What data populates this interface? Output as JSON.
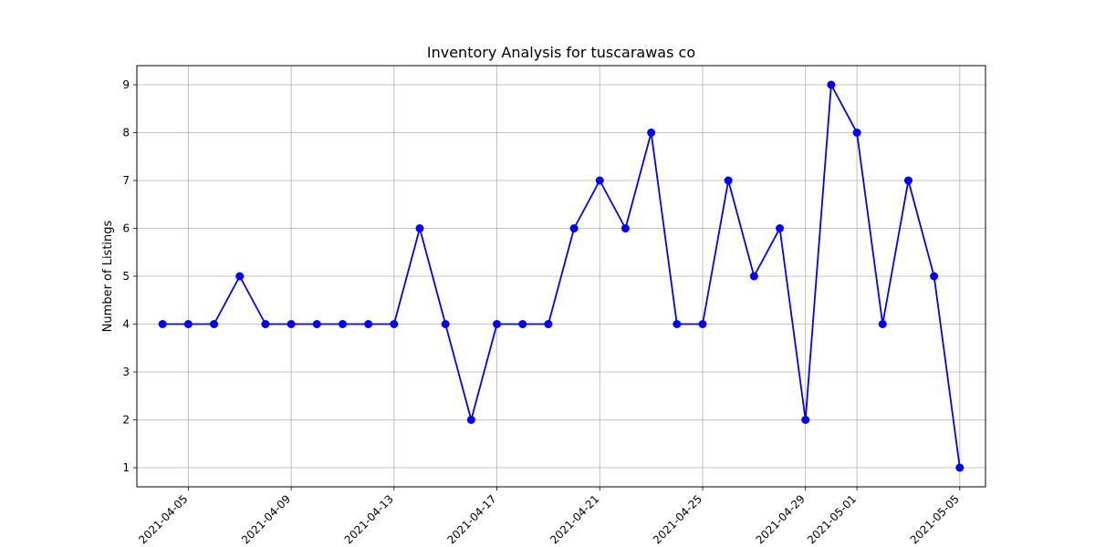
{
  "chart_data": {
    "type": "line",
    "title": "Inventory Analysis for tuscarawas co",
    "xlabel": "",
    "ylabel": "Number of Listings",
    "x": [
      "2021-04-04",
      "2021-04-05",
      "2021-04-06",
      "2021-04-07",
      "2021-04-08",
      "2021-04-09",
      "2021-04-10",
      "2021-04-11",
      "2021-04-12",
      "2021-04-13",
      "2021-04-14",
      "2021-04-15",
      "2021-04-16",
      "2021-04-17",
      "2021-04-18",
      "2021-04-19",
      "2021-04-20",
      "2021-04-21",
      "2021-04-22",
      "2021-04-23",
      "2021-04-24",
      "2021-04-25",
      "2021-04-26",
      "2021-04-27",
      "2021-04-28",
      "2021-04-29",
      "2021-04-30",
      "2021-05-01",
      "2021-05-02",
      "2021-05-03",
      "2021-05-04",
      "2021-05-05"
    ],
    "series": [
      {
        "values": [
          4,
          4,
          4,
          5,
          4,
          4,
          4,
          4,
          4,
          4,
          6,
          4,
          2,
          4,
          4,
          4,
          6,
          7,
          6,
          8,
          4,
          4,
          7,
          5,
          6,
          2,
          9,
          8,
          4,
          7,
          5,
          1
        ],
        "color": "#0000ff",
        "marker": "circle"
      }
    ],
    "xticks": [
      "2021-04-05",
      "2021-04-09",
      "2021-04-13",
      "2021-04-17",
      "2021-04-21",
      "2021-04-25",
      "2021-04-29",
      "2021-05-01",
      "2021-05-05"
    ],
    "yticks": [
      1,
      2,
      3,
      4,
      5,
      6,
      7,
      8,
      9
    ],
    "xlim": [
      "2021-04-03",
      "2021-05-06"
    ],
    "ylim": [
      0.6,
      9.4
    ],
    "grid": true,
    "legend": false
  }
}
